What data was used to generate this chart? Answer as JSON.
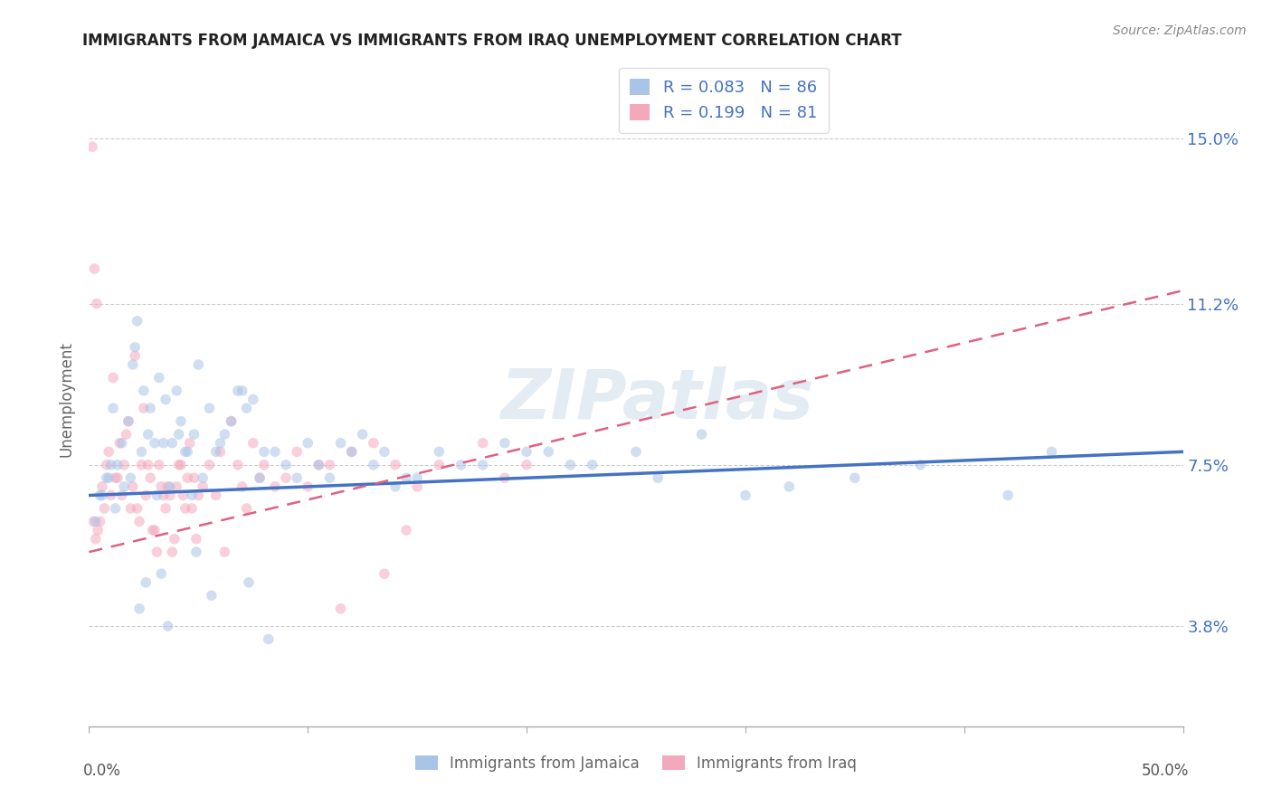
{
  "title": "IMMIGRANTS FROM JAMAICA VS IMMIGRANTS FROM IRAQ UNEMPLOYMENT CORRELATION CHART",
  "source": "Source: ZipAtlas.com",
  "ylabel": "Unemployment",
  "yticks": [
    3.8,
    7.5,
    11.2,
    15.0
  ],
  "ytick_labels": [
    "3.8%",
    "7.5%",
    "11.2%",
    "15.0%"
  ],
  "xmin": 0.0,
  "xmax": 50.0,
  "ymin": 1.5,
  "ymax": 16.5,
  "series_jamaica": {
    "label": "Immigrants from Jamaica",
    "R": 0.083,
    "N": 86,
    "color_scatter": "#aac4e8",
    "color_line": "#4472c4",
    "color_text": "#4472c4",
    "line_style": "solid",
    "line_start_y": 6.8,
    "line_end_y": 7.8
  },
  "series_iraq": {
    "label": "Immigrants from Iraq",
    "R": 0.199,
    "N": 81,
    "color_scatter": "#f4a8bc",
    "color_line": "#e06080",
    "color_text": "#e06080",
    "line_style": "dashed",
    "line_start_y": 5.5,
    "line_end_y": 11.5
  },
  "watermark": "ZIPatlas",
  "watermark_color": "#c8d8e8",
  "scatter_size": 70,
  "scatter_alpha": 0.55,
  "jamaica_x": [
    0.5,
    0.8,
    1.0,
    1.2,
    1.5,
    1.8,
    2.0,
    2.2,
    2.5,
    2.8,
    3.0,
    3.2,
    3.5,
    3.8,
    4.0,
    4.2,
    4.5,
    4.8,
    5.0,
    5.5,
    6.0,
    6.5,
    7.0,
    7.5,
    8.0,
    9.0,
    10.0,
    11.0,
    12.0,
    13.0,
    14.0,
    15.0,
    17.0,
    20.0,
    22.0,
    25.0,
    28.0,
    30.0,
    35.0,
    42.0,
    0.3,
    0.6,
    0.9,
    1.1,
    1.3,
    1.6,
    1.9,
    2.1,
    2.4,
    2.7,
    3.1,
    3.4,
    3.7,
    4.1,
    4.4,
    4.7,
    5.2,
    5.8,
    6.2,
    6.8,
    7.2,
    7.8,
    8.5,
    9.5,
    10.5,
    11.5,
    12.5,
    13.5,
    14.5,
    16.0,
    18.0,
    19.0,
    21.0,
    23.0,
    26.0,
    32.0,
    38.0,
    44.0,
    2.3,
    2.6,
    3.3,
    3.6,
    4.9,
    5.6,
    7.3,
    8.2
  ],
  "jamaica_y": [
    6.8,
    7.2,
    7.5,
    6.5,
    8.0,
    8.5,
    9.8,
    10.8,
    9.2,
    8.8,
    8.0,
    9.5,
    9.0,
    8.0,
    9.2,
    8.5,
    7.8,
    8.2,
    9.8,
    8.8,
    8.0,
    8.5,
    9.2,
    9.0,
    7.8,
    7.5,
    8.0,
    7.2,
    7.8,
    7.5,
    7.0,
    7.2,
    7.5,
    7.8,
    7.5,
    7.8,
    8.2,
    6.8,
    7.2,
    6.8,
    6.2,
    6.8,
    7.2,
    8.8,
    7.5,
    7.0,
    7.2,
    10.2,
    7.8,
    8.2,
    6.8,
    8.0,
    7.0,
    8.2,
    7.8,
    6.8,
    7.2,
    7.8,
    8.2,
    9.2,
    8.8,
    7.2,
    7.8,
    7.2,
    7.5,
    8.0,
    8.2,
    7.8,
    7.2,
    7.8,
    7.5,
    8.0,
    7.8,
    7.5,
    7.2,
    7.0,
    7.5,
    7.8,
    4.2,
    4.8,
    5.0,
    3.8,
    5.5,
    4.5,
    4.8,
    3.5
  ],
  "iraq_x": [
    0.2,
    0.4,
    0.6,
    0.8,
    1.0,
    1.2,
    1.4,
    1.6,
    1.8,
    2.0,
    2.2,
    2.4,
    2.6,
    2.8,
    3.0,
    3.2,
    3.4,
    3.6,
    3.8,
    4.0,
    4.2,
    4.4,
    4.6,
    4.8,
    5.0,
    5.5,
    6.0,
    6.5,
    7.0,
    7.5,
    8.0,
    9.0,
    10.0,
    11.0,
    12.0,
    13.0,
    14.0,
    15.0,
    18.0,
    20.0,
    0.3,
    0.5,
    0.7,
    0.9,
    1.1,
    1.3,
    1.5,
    1.7,
    1.9,
    2.1,
    2.3,
    2.5,
    2.7,
    2.9,
    3.1,
    3.3,
    3.5,
    3.7,
    3.9,
    4.1,
    4.3,
    4.5,
    4.7,
    4.9,
    5.2,
    5.8,
    6.2,
    6.8,
    7.2,
    7.8,
    8.5,
    9.5,
    10.5,
    11.5,
    13.5,
    14.5,
    16.0,
    19.0,
    0.15,
    0.25,
    0.35
  ],
  "iraq_y": [
    6.2,
    6.0,
    7.0,
    7.5,
    6.8,
    7.2,
    8.0,
    7.5,
    8.5,
    7.0,
    6.5,
    7.5,
    6.8,
    7.2,
    6.0,
    7.5,
    6.8,
    7.0,
    5.5,
    7.0,
    7.5,
    6.5,
    8.0,
    7.2,
    6.8,
    7.5,
    7.8,
    8.5,
    7.0,
    8.0,
    7.5,
    7.2,
    7.0,
    7.5,
    7.8,
    8.0,
    7.5,
    7.0,
    8.0,
    7.5,
    5.8,
    6.2,
    6.5,
    7.8,
    9.5,
    7.2,
    6.8,
    8.2,
    6.5,
    10.0,
    6.2,
    8.8,
    7.5,
    6.0,
    5.5,
    7.0,
    6.5,
    6.8,
    5.8,
    7.5,
    6.8,
    7.2,
    6.5,
    5.8,
    7.0,
    6.8,
    5.5,
    7.5,
    6.5,
    7.2,
    7.0,
    7.8,
    7.5,
    4.2,
    5.0,
    6.0,
    7.5,
    7.2,
    14.8,
    12.0,
    11.2
  ]
}
